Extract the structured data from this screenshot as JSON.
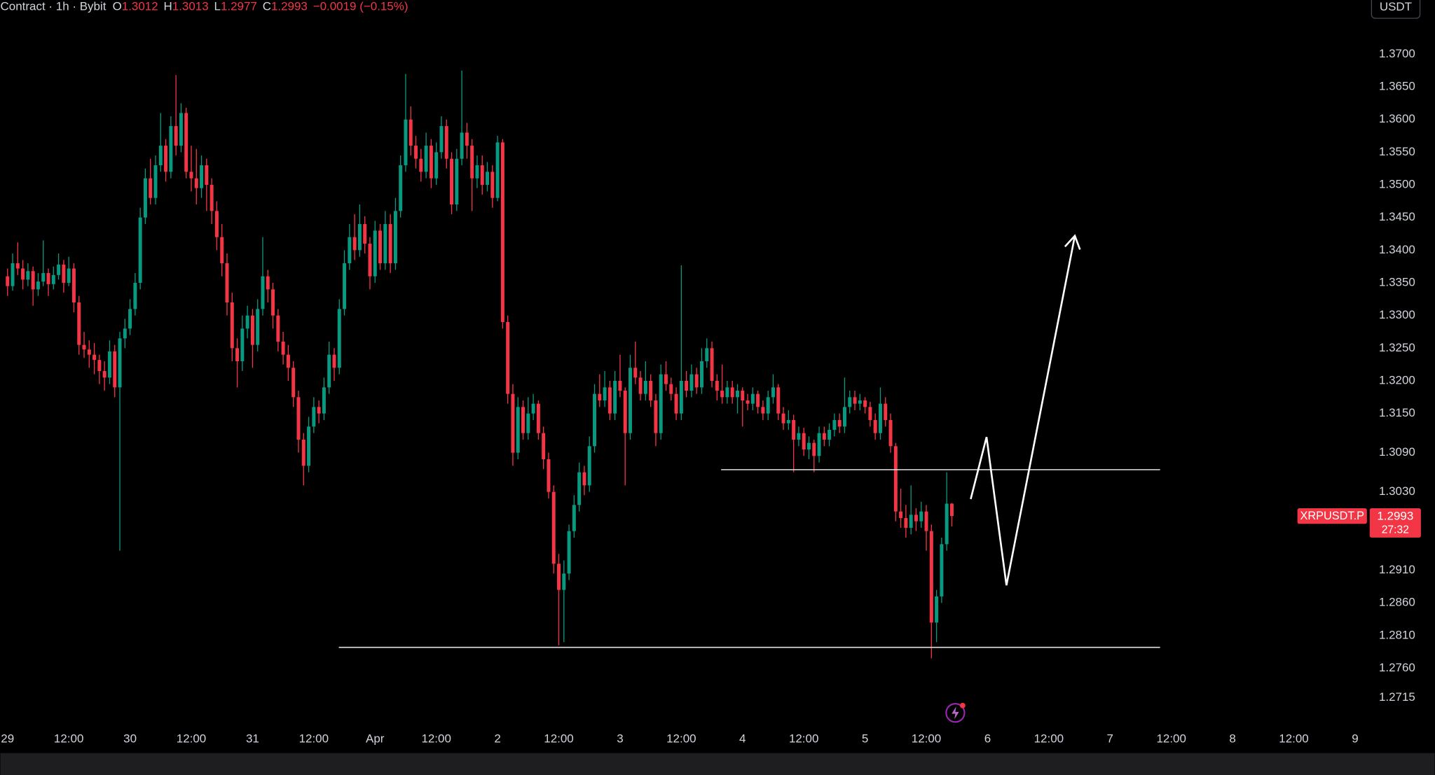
{
  "header": {
    "title": "Contract · 1h · Bybit",
    "ohlc": [
      {
        "label": "O",
        "value": 1.3012
      },
      {
        "label": "H",
        "value": 1.3013
      },
      {
        "label": "L",
        "value": 1.2977
      },
      {
        "label": "C",
        "value": 1.2993
      }
    ],
    "change": "−0.0019 (−0.15%)"
  },
  "chart_data": {
    "type": "candlestick",
    "up_color": "#089981",
    "down_color": "#f23645",
    "currency": "USDT",
    "xlim": [
      -1.4,
      266.5
    ],
    "xticks": [
      {
        "value": 0,
        "label": "29"
      },
      {
        "value": 12,
        "label": "12:00"
      },
      {
        "value": 24,
        "label": "30"
      },
      {
        "value": 36,
        "label": "12:00"
      },
      {
        "value": 48,
        "label": "31"
      },
      {
        "value": 60,
        "label": "12:00"
      },
      {
        "value": 72,
        "label": "Apr"
      },
      {
        "value": 84,
        "label": "12:00"
      },
      {
        "value": 96,
        "label": "2"
      },
      {
        "value": 108,
        "label": "12:00"
      },
      {
        "value": 120,
        "label": "3"
      },
      {
        "value": 132,
        "label": "12:00"
      },
      {
        "value": 144,
        "label": "4"
      },
      {
        "value": 156,
        "label": "12:00"
      },
      {
        "value": 168,
        "label": "5"
      },
      {
        "value": 180,
        "label": "12:00"
      },
      {
        "value": 192,
        "label": "6"
      },
      {
        "value": 204,
        "label": "12:00"
      },
      {
        "value": 216,
        "label": "7"
      },
      {
        "value": 228,
        "label": "12:00"
      },
      {
        "value": 240,
        "label": "8"
      },
      {
        "value": 252,
        "label": "12:00"
      },
      {
        "value": 264,
        "label": "9"
      }
    ],
    "ylim": [
      1.2633,
      1.3783
    ],
    "yticks": [
      {
        "value": 1.37,
        "label": "1.3700"
      },
      {
        "value": 1.365,
        "label": "1.3650"
      },
      {
        "value": 1.36,
        "label": "1.3600"
      },
      {
        "value": 1.355,
        "label": "1.3550"
      },
      {
        "value": 1.35,
        "label": "1.3500"
      },
      {
        "value": 1.345,
        "label": "1.3450"
      },
      {
        "value": 1.34,
        "label": "1.3400"
      },
      {
        "value": 1.335,
        "label": "1.3350"
      },
      {
        "value": 1.33,
        "label": "1.3300"
      },
      {
        "value": 1.325,
        "label": "1.3250"
      },
      {
        "value": 1.32,
        "label": "1.3200"
      },
      {
        "value": 1.315,
        "label": "1.3150"
      },
      {
        "value": 1.309,
        "label": "1.3090"
      },
      {
        "value": 1.303,
        "label": "1.3030"
      },
      {
        "value": 1.291,
        "label": "1.2910"
      },
      {
        "value": 1.286,
        "label": "1.2860"
      },
      {
        "value": 1.281,
        "label": "1.2810"
      },
      {
        "value": 1.276,
        "label": "1.2760"
      },
      {
        "value": 1.2715,
        "label": "1.2715"
      }
    ],
    "price_tag": {
      "symbol": "XRPUSDT.P",
      "price": 1.2993,
      "countdown": "27:32"
    },
    "lines": [
      {
        "value": 1.3064,
        "x": [
          139.8,
          225.8
        ]
      },
      {
        "value": 1.2792,
        "x": [
          64.9,
          225.8
        ]
      }
    ],
    "projection": {
      "x": [
        188.7,
        191.8,
        195.7,
        209.1
      ],
      "y": [
        1.3019,
        1.3114,
        1.2887,
        1.3422
      ]
    },
    "candles": [
      [
        1.336,
        1.3372,
        1.333,
        1.3345
      ],
      [
        1.3345,
        1.3395,
        1.3338,
        1.338
      ],
      [
        1.338,
        1.3412,
        1.3362,
        1.3372
      ],
      [
        1.3372,
        1.3385,
        1.334,
        1.3355
      ],
      [
        1.3355,
        1.338,
        1.3345,
        1.3368
      ],
      [
        1.3368,
        1.3375,
        1.3315,
        1.334
      ],
      [
        1.334,
        1.3365,
        1.333,
        1.3352
      ],
      [
        1.3352,
        1.3415,
        1.3345,
        1.3365
      ],
      [
        1.3365,
        1.3372,
        1.333,
        1.3348
      ],
      [
        1.3348,
        1.3375,
        1.334,
        1.3362
      ],
      [
        1.3362,
        1.3395,
        1.3355,
        1.3378
      ],
      [
        1.3378,
        1.3385,
        1.3335,
        1.335
      ],
      [
        1.335,
        1.339,
        1.3345,
        1.3372
      ],
      [
        1.3372,
        1.338,
        1.3305,
        1.332
      ],
      [
        1.332,
        1.333,
        1.324,
        1.3255
      ],
      [
        1.3255,
        1.3275,
        1.3235,
        1.3248
      ],
      [
        1.3248,
        1.3262,
        1.322,
        1.324
      ],
      [
        1.324,
        1.3258,
        1.321,
        1.3232
      ],
      [
        1.3232,
        1.324,
        1.3195,
        1.3215
      ],
      [
        1.3215,
        1.323,
        1.3185,
        1.3205
      ],
      [
        1.3205,
        1.3262,
        1.3195,
        1.3245
      ],
      [
        1.3245,
        1.3255,
        1.3175,
        1.319
      ],
      [
        1.319,
        1.3275,
        1.294,
        1.3265
      ],
      [
        1.3265,
        1.3295,
        1.325,
        1.328
      ],
      [
        1.328,
        1.3325,
        1.327,
        1.331
      ],
      [
        1.331,
        1.3365,
        1.33,
        1.335
      ],
      [
        1.335,
        1.3465,
        1.334,
        1.345
      ],
      [
        1.345,
        1.3525,
        1.344,
        1.351
      ],
      [
        1.351,
        1.354,
        1.347,
        1.348
      ],
      [
        1.348,
        1.3545,
        1.347,
        1.353
      ],
      [
        1.353,
        1.361,
        1.352,
        1.356
      ],
      [
        1.356,
        1.357,
        1.3505,
        1.352
      ],
      [
        1.352,
        1.3605,
        1.351,
        1.359
      ],
      [
        1.359,
        1.3668,
        1.3545,
        1.356
      ],
      [
        1.356,
        1.3625,
        1.355,
        1.361
      ],
      [
        1.361,
        1.3618,
        1.351,
        1.352
      ],
      [
        1.352,
        1.356,
        1.349,
        1.351
      ],
      [
        1.351,
        1.3555,
        1.347,
        1.3495
      ],
      [
        1.3495,
        1.3545,
        1.348,
        1.353
      ],
      [
        1.353,
        1.354,
        1.346,
        1.35
      ],
      [
        1.35,
        1.351,
        1.344,
        1.346
      ],
      [
        1.346,
        1.3475,
        1.34,
        1.342
      ],
      [
        1.342,
        1.344,
        1.336,
        1.338
      ],
      [
        1.338,
        1.3395,
        1.33,
        1.332
      ],
      [
        1.332,
        1.3335,
        1.323,
        1.325
      ],
      [
        1.325,
        1.3265,
        1.319,
        1.323
      ],
      [
        1.323,
        1.33,
        1.3215,
        1.328
      ],
      [
        1.328,
        1.3315,
        1.3265,
        1.33
      ],
      [
        1.33,
        1.331,
        1.322,
        1.3255
      ],
      [
        1.3255,
        1.3325,
        1.3245,
        1.331
      ],
      [
        1.331,
        1.342,
        1.33,
        1.336
      ],
      [
        1.336,
        1.337,
        1.332,
        1.334
      ],
      [
        1.334,
        1.335,
        1.328,
        1.33
      ],
      [
        1.33,
        1.331,
        1.3245,
        1.326
      ],
      [
        1.326,
        1.3275,
        1.3225,
        1.324
      ],
      [
        1.324,
        1.3255,
        1.32,
        1.322
      ],
      [
        1.322,
        1.323,
        1.316,
        1.3175
      ],
      [
        1.3175,
        1.3185,
        1.309,
        1.311
      ],
      [
        1.311,
        1.312,
        1.304,
        1.307
      ],
      [
        1.307,
        1.3145,
        1.306,
        1.313
      ],
      [
        1.313,
        1.3175,
        1.312,
        1.316
      ],
      [
        1.316,
        1.317,
        1.3135,
        1.315
      ],
      [
        1.315,
        1.3205,
        1.314,
        1.319
      ],
      [
        1.319,
        1.326,
        1.318,
        1.324
      ],
      [
        1.324,
        1.325,
        1.32,
        1.322
      ],
      [
        1.322,
        1.3325,
        1.321,
        1.331
      ],
      [
        1.331,
        1.34,
        1.33,
        1.338
      ],
      [
        1.338,
        1.344,
        1.337,
        1.342
      ],
      [
        1.342,
        1.3455,
        1.3385,
        1.34
      ],
      [
        1.34,
        1.347,
        1.339,
        1.344
      ],
      [
        1.344,
        1.3452,
        1.3395,
        1.341
      ],
      [
        1.341,
        1.342,
        1.334,
        1.336
      ],
      [
        1.336,
        1.3445,
        1.335,
        1.343
      ],
      [
        1.343,
        1.344,
        1.337,
        1.338
      ],
      [
        1.338,
        1.346,
        1.337,
        1.344
      ],
      [
        1.344,
        1.3455,
        1.3365,
        1.338
      ],
      [
        1.338,
        1.348,
        1.337,
        1.346
      ],
      [
        1.346,
        1.3545,
        1.345,
        1.353
      ],
      [
        1.353,
        1.367,
        1.352,
        1.36
      ],
      [
        1.36,
        1.362,
        1.3545,
        1.356
      ],
      [
        1.356,
        1.3575,
        1.3525,
        1.354
      ],
      [
        1.354,
        1.3555,
        1.3505,
        1.352
      ],
      [
        1.352,
        1.358,
        1.351,
        1.356
      ],
      [
        1.356,
        1.357,
        1.3495,
        1.351
      ],
      [
        1.351,
        1.3565,
        1.35,
        1.355
      ],
      [
        1.355,
        1.3605,
        1.354,
        1.359
      ],
      [
        1.359,
        1.36,
        1.3525,
        1.354
      ],
      [
        1.354,
        1.355,
        1.3455,
        1.347
      ],
      [
        1.347,
        1.3555,
        1.346,
        1.354
      ],
      [
        1.354,
        1.3675,
        1.353,
        1.358
      ],
      [
        1.358,
        1.3595,
        1.354,
        1.356
      ],
      [
        1.356,
        1.357,
        1.346,
        1.351
      ],
      [
        1.351,
        1.3545,
        1.3495,
        1.353
      ],
      [
        1.353,
        1.3545,
        1.3485,
        1.35
      ],
      [
        1.35,
        1.3535,
        1.349,
        1.352
      ],
      [
        1.352,
        1.353,
        1.3465,
        1.348
      ],
      [
        1.348,
        1.3575,
        1.3475,
        1.3565
      ],
      [
        1.3565,
        1.357,
        1.328,
        1.329
      ],
      [
        1.329,
        1.33,
        1.3165,
        1.318
      ],
      [
        1.318,
        1.3195,
        1.307,
        1.309
      ],
      [
        1.309,
        1.3175,
        1.308,
        1.316
      ],
      [
        1.316,
        1.317,
        1.311,
        1.312
      ],
      [
        1.312,
        1.3175,
        1.311,
        1.315
      ],
      [
        1.315,
        1.318,
        1.314,
        1.3165
      ],
      [
        1.3165,
        1.317,
        1.311,
        1.312
      ],
      [
        1.312,
        1.313,
        1.3065,
        1.308
      ],
      [
        1.308,
        1.309,
        1.302,
        1.303
      ],
      [
        1.303,
        1.304,
        1.2905,
        1.292
      ],
      [
        1.292,
        1.2935,
        1.2795,
        1.288
      ],
      [
        1.288,
        1.2925,
        1.28,
        1.2905
      ],
      [
        1.2905,
        1.298,
        1.2895,
        1.297
      ],
      [
        1.297,
        1.3025,
        1.296,
        1.301
      ],
      [
        1.301,
        1.3075,
        1.3,
        1.306
      ],
      [
        1.306,
        1.307,
        1.3025,
        1.304
      ],
      [
        1.304,
        1.3115,
        1.303,
        1.31
      ],
      [
        1.31,
        1.3195,
        1.309,
        1.318
      ],
      [
        1.318,
        1.321,
        1.316,
        1.317
      ],
      [
        1.317,
        1.3215,
        1.316,
        1.319
      ],
      [
        1.319,
        1.32,
        1.314,
        1.315
      ],
      [
        1.315,
        1.3215,
        1.314,
        1.32
      ],
      [
        1.32,
        1.324,
        1.3175,
        1.3185
      ],
      [
        1.3185,
        1.319,
        1.304,
        1.312
      ],
      [
        1.312,
        1.324,
        1.311,
        1.322
      ],
      [
        1.322,
        1.326,
        1.3195,
        1.3205
      ],
      [
        1.3205,
        1.3215,
        1.317,
        1.318
      ],
      [
        1.318,
        1.323,
        1.317,
        1.32
      ],
      [
        1.32,
        1.321,
        1.316,
        1.317
      ],
      [
        1.317,
        1.318,
        1.31,
        1.312
      ],
      [
        1.312,
        1.3225,
        1.311,
        1.321
      ],
      [
        1.321,
        1.323,
        1.3185,
        1.3195
      ],
      [
        1.3195,
        1.3205,
        1.317,
        1.318
      ],
      [
        1.318,
        1.319,
        1.314,
        1.315
      ],
      [
        1.315,
        1.3377,
        1.314,
        1.32
      ],
      [
        1.32,
        1.3215,
        1.3175,
        1.3185
      ],
      [
        1.3185,
        1.3225,
        1.3175,
        1.321
      ],
      [
        1.321,
        1.322,
        1.318,
        1.319
      ],
      [
        1.319,
        1.325,
        1.318,
        1.323
      ],
      [
        1.323,
        1.3265,
        1.322,
        1.325
      ],
      [
        1.325,
        1.326,
        1.319,
        1.32
      ],
      [
        1.32,
        1.321,
        1.317,
        1.3185
      ],
      [
        1.3185,
        1.3225,
        1.3165,
        1.3175
      ],
      [
        1.3175,
        1.32,
        1.3165,
        1.319
      ],
      [
        1.319,
        1.32,
        1.3165,
        1.3175
      ],
      [
        1.3175,
        1.3195,
        1.315,
        1.3185
      ],
      [
        1.3185,
        1.319,
        1.313,
        1.317
      ],
      [
        1.317,
        1.318,
        1.3155,
        1.3165
      ],
      [
        1.3165,
        1.319,
        1.3155,
        1.318
      ],
      [
        1.318,
        1.3185,
        1.315,
        1.316
      ],
      [
        1.316,
        1.317,
        1.314,
        1.315
      ],
      [
        1.315,
        1.3185,
        1.314,
        1.3175
      ],
      [
        1.3175,
        1.321,
        1.3165,
        1.319
      ],
      [
        1.319,
        1.3195,
        1.314,
        1.315
      ],
      [
        1.315,
        1.316,
        1.3125,
        1.3135
      ],
      [
        1.3135,
        1.3155,
        1.3125,
        1.314
      ],
      [
        1.314,
        1.3148,
        1.306,
        1.311
      ],
      [
        1.311,
        1.313,
        1.31,
        1.312
      ],
      [
        1.312,
        1.3128,
        1.3085,
        1.3095
      ],
      [
        1.3095,
        1.3115,
        1.308,
        1.3105
      ],
      [
        1.3105,
        1.311,
        1.306,
        1.3085
      ],
      [
        1.3085,
        1.313,
        1.3075,
        1.312
      ],
      [
        1.312,
        1.313,
        1.31,
        1.311
      ],
      [
        1.311,
        1.3135,
        1.31,
        1.3125
      ],
      [
        1.3125,
        1.315,
        1.3115,
        1.314
      ],
      [
        1.314,
        1.315,
        1.312,
        1.313
      ],
      [
        1.313,
        1.3205,
        1.312,
        1.316
      ],
      [
        1.316,
        1.3185,
        1.315,
        1.3175
      ],
      [
        1.3175,
        1.3185,
        1.3155,
        1.3165
      ],
      [
        1.3165,
        1.318,
        1.3155,
        1.317
      ],
      [
        1.317,
        1.3175,
        1.315,
        1.316
      ],
      [
        1.316,
        1.3168,
        1.313,
        1.314
      ],
      [
        1.314,
        1.315,
        1.311,
        1.312
      ],
      [
        1.312,
        1.319,
        1.311,
        1.3165
      ],
      [
        1.3165,
        1.3175,
        1.313,
        1.314
      ],
      [
        1.314,
        1.315,
        1.309,
        1.31
      ],
      [
        1.31,
        1.3105,
        1.2985,
        1.3
      ],
      [
        1.3,
        1.3035,
        1.2975,
        1.299
      ],
      [
        1.299,
        1.301,
        1.296,
        1.2975
      ],
      [
        1.2975,
        1.304,
        1.2965,
        1.2995
      ],
      [
        1.2995,
        1.3005,
        1.297,
        1.2985
      ],
      [
        1.2985,
        1.3015,
        1.2975,
        1.3
      ],
      [
        1.3,
        1.301,
        1.294,
        1.297
      ],
      [
        1.297,
        1.298,
        1.2775,
        1.283
      ],
      [
        1.283,
        1.288,
        1.28,
        1.287
      ],
      [
        1.287,
        1.296,
        1.286,
        1.295
      ],
      [
        1.295,
        1.306,
        1.294,
        1.3012
      ],
      [
        1.3012,
        1.3013,
        1.2977,
        1.2993
      ]
    ]
  }
}
